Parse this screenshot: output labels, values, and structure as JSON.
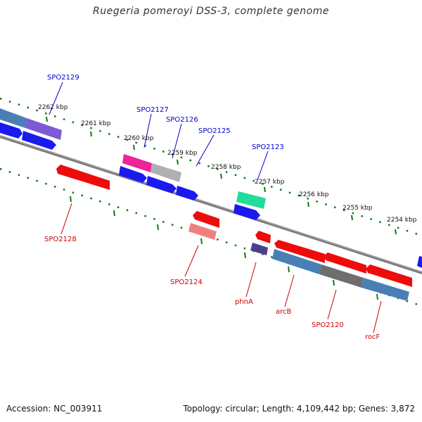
{
  "title": "Ruegeria pomeroyi DSS-3, complete genome",
  "footer": {
    "accession": "Accession: NC_003911",
    "summary": "Topology: circular; Length: 4,109,442 bp; Genes: 3,872"
  },
  "ticks": [
    {
      "label": "2262 kbp"
    },
    {
      "label": "2261 kbp"
    },
    {
      "label": "2260 kbp"
    },
    {
      "label": "2259 kbp"
    },
    {
      "label": "2258 kbp"
    },
    {
      "label": "2257 kbp"
    },
    {
      "label": "2256 kbp"
    },
    {
      "label": "2255 kbp"
    },
    {
      "label": "2254 kbp"
    }
  ],
  "genes_upper": [
    "SPO2129",
    "SPO2127",
    "SPO2126",
    "SPO2125",
    "SPO2123"
  ],
  "genes_lower": [
    "SPO2128",
    "SPO2124",
    "phnA",
    "arcB",
    "SPO2120",
    "rocF"
  ],
  "colors": {
    "upper_label": "#0000cc",
    "lower_label": "#cc0000",
    "tick": "#117711",
    "backbone": "#888888",
    "blue": "#1a1af0",
    "red": "#ee0b0b",
    "steel": "#4a7fb6",
    "purple": "#7c5ad6",
    "magenta": "#ee2299",
    "grey": "#b0b0b0",
    "teal": "#22dd99",
    "pink": "#f08080",
    "indigo": "#4c3f8e",
    "darkgrey": "#6e6e6e"
  }
}
